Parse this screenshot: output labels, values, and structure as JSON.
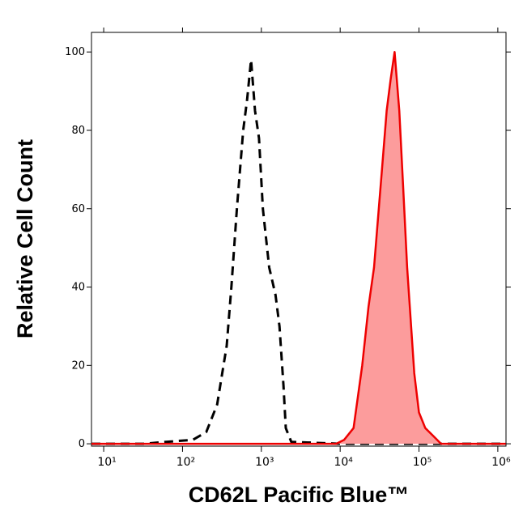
{
  "chart_data": {
    "type": "line",
    "x_label": "CD62L Pacific Blue™",
    "y_label": "Relative Cell Count",
    "xscale": "log",
    "xlim": [
      7,
      1270000
    ],
    "ylim": [
      -0.6,
      105
    ],
    "xticks": [
      {
        "value": 10,
        "label": "10¹"
      },
      {
        "value": 100,
        "label": "10²"
      },
      {
        "value": 1000,
        "label": "10³"
      },
      {
        "value": 10000,
        "label": "10⁴"
      },
      {
        "value": 100000,
        "label": "10⁵"
      },
      {
        "value": 1000000,
        "label": "10⁶"
      }
    ],
    "yticks": [
      0,
      20,
      40,
      60,
      80,
      100
    ],
    "series": [
      {
        "color": "#000000",
        "line_style": "dashed",
        "x": [
          7,
          32,
          62,
          135,
          200,
          275,
          363,
          417,
          490,
          589,
          661,
          741,
          832,
          933,
          1047,
          1259,
          1514,
          1698,
          1905,
          2042,
          2399,
          10000,
          1260000
        ],
        "values": [
          0,
          0,
          0.5,
          1,
          3,
          10,
          25,
          40,
          60,
          80,
          88,
          98,
          85,
          78,
          60,
          45,
          38,
          30,
          15,
          4,
          0.5,
          0,
          0
        ]
      },
      {
        "color": "#ee0000",
        "fill": "#fc9c9c",
        "line_style": "solid",
        "x": [
          7,
          8900,
          11220,
          14790,
          19050,
          22910,
          26920,
          29510,
          33880,
          38900,
          43650,
          48980,
          56230,
          63100,
          70790,
          79430,
          87100,
          100000,
          120200,
          151400,
          190500,
          1260000
        ],
        "values": [
          0,
          0,
          1,
          4,
          20,
          35,
          45,
          55,
          70,
          85,
          93,
          100,
          85,
          65,
          45,
          30,
          18,
          8,
          4,
          2,
          0,
          0
        ]
      }
    ]
  }
}
